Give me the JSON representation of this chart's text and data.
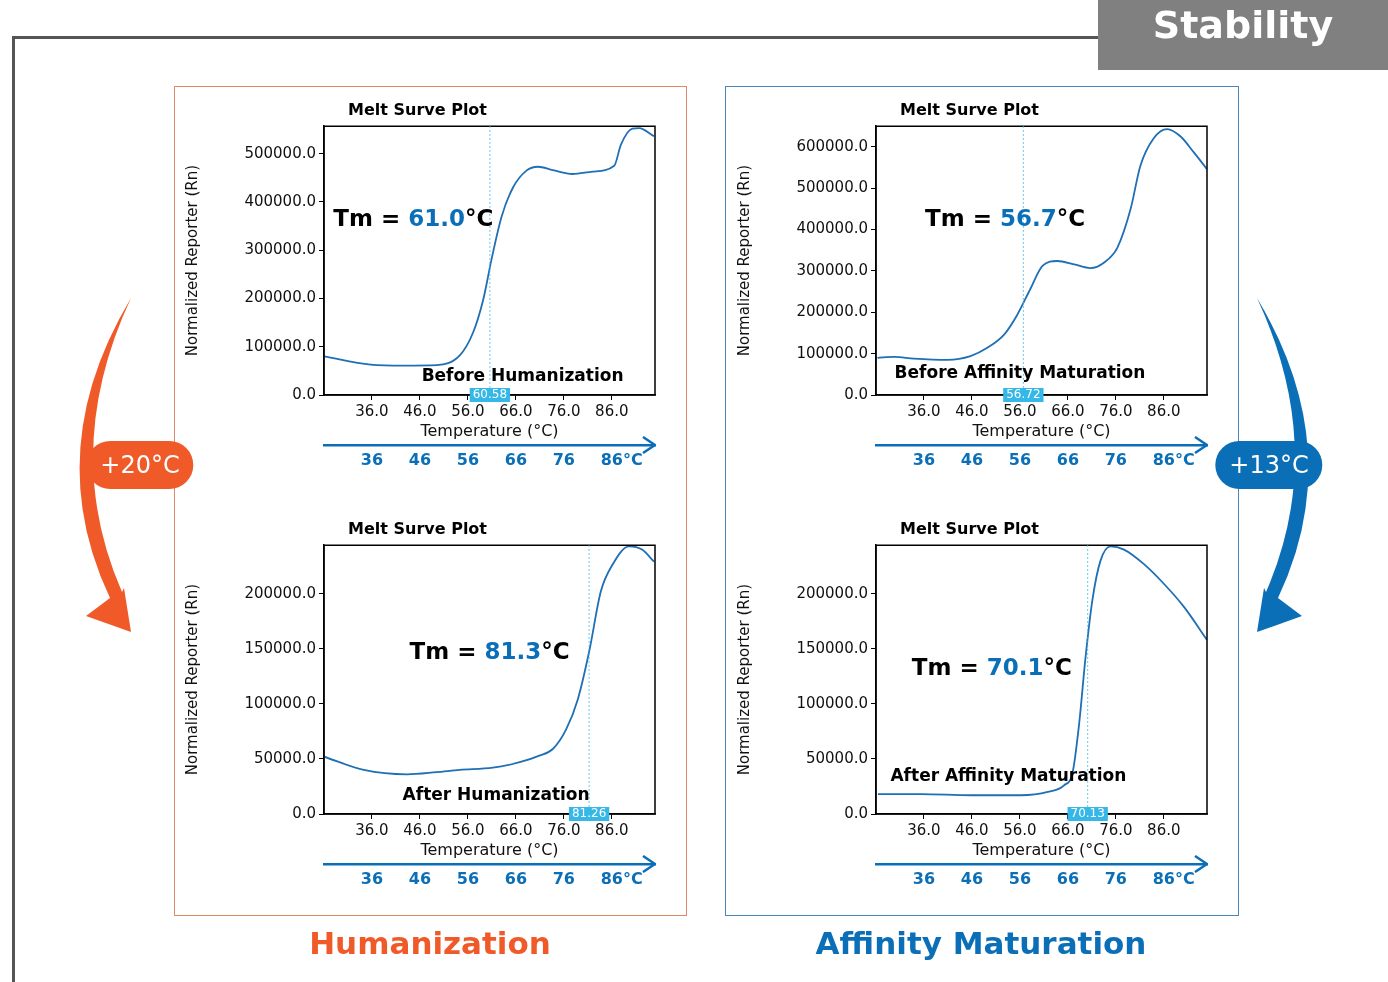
{
  "chart_data": [
    {
      "type": "line",
      "title": "Melt Surve Plot",
      "xlabel": "Temperature (°C)",
      "ylabel": "Normalized Reporter (Rn)",
      "x": [
        26.0,
        35.7,
        42.6,
        49.5,
        54.3,
        57.1,
        59.2,
        60.9,
        63.0,
        65.4,
        68.2,
        70.6,
        73.7,
        77.8,
        82.0,
        86.5,
        87.9,
        90.3,
        91.7,
        94.8
      ],
      "series": [
        {
          "color": "#1f6fb5",
          "values": [
            80000,
            63000,
            61000,
            62000,
            82000,
            130000,
            198000,
            280000,
            369000,
            430000,
            465000,
            473000,
            466000,
            458000,
            463000,
            475000,
            519000,
            552000,
            553000,
            536000
          ]
        }
      ],
      "xlim": [
        26,
        95
      ],
      "ylim": [
        0,
        557000
      ],
      "xticks": [
        {
          "value": 36,
          "label": "36.0"
        },
        {
          "value": 46,
          "label": "46.0"
        },
        {
          "value": 56,
          "label": "56.0"
        },
        {
          "value": 66,
          "label": "66.0"
        },
        {
          "value": 76,
          "label": "76.0"
        },
        {
          "value": 86,
          "label": "86.0"
        }
      ],
      "yticks": [
        {
          "value": 0,
          "label": "0.0"
        },
        {
          "value": 100000,
          "label": "100000.0"
        },
        {
          "value": 200000,
          "label": "200000.0"
        },
        {
          "value": 300000,
          "label": "300000.0"
        },
        {
          "value": 400000,
          "label": "400000.0"
        },
        {
          "value": 500000,
          "label": "500000.0"
        }
      ],
      "x2lim": [
        26,
        95
      ],
      "x2ticks": [
        36,
        46,
        56,
        66,
        76,
        86
      ],
      "x2label": "°C",
      "ref_lines": [
        {
          "axis": "x",
          "value": 60.58,
          "label": "60.58",
          "color": "#35b8e8",
          "line_style": "dotted"
        }
      ],
      "annotations": [
        "Tm = 61.0°C",
        "Before Humanization"
      ],
      "marker": "none",
      "line_style": "solid"
    },
    {
      "type": "line",
      "title": "Melt Surve Plot",
      "xlabel": "Temperature (°C)",
      "ylabel": "Normalized Reporter (Rn)",
      "x": [
        26.3,
        29.8,
        33.9,
        40.9,
        45.7,
        49.2,
        52.7,
        55.4,
        58.2,
        60.7,
        63.8,
        67.3,
        70.7,
        73.5,
        76.3,
        79.1,
        81.1,
        83.9,
        86.7,
        89.5,
        92.3,
        95.0
      ],
      "series": [
        {
          "color": "#1f6fb5",
          "values": [
            90000,
            92000,
            88000,
            85000,
            94000,
            114000,
            146000,
            193000,
            257000,
            312000,
            324000,
            316000,
            307000,
            320000,
            356000,
            451000,
            554000,
            621000,
            643000,
            625000,
            586000,
            546000
          ]
        }
      ],
      "xlim": [
        26,
        95
      ],
      "ylim": [
        0,
        650000
      ],
      "xticks": [
        {
          "value": 36,
          "label": "36.0"
        },
        {
          "value": 46,
          "label": "46.0"
        },
        {
          "value": 56,
          "label": "56.0"
        },
        {
          "value": 66,
          "label": "66.0"
        },
        {
          "value": 76,
          "label": "76.0"
        },
        {
          "value": 86,
          "label": "86.0"
        }
      ],
      "yticks": [
        {
          "value": 0,
          "label": "0.0"
        },
        {
          "value": 100000,
          "label": "100000.0"
        },
        {
          "value": 200000,
          "label": "200000.0"
        },
        {
          "value": 300000,
          "label": "300000.0"
        },
        {
          "value": 400000,
          "label": "400000.0"
        },
        {
          "value": 500000,
          "label": "500000.0"
        },
        {
          "value": 600000,
          "label": "600000.0"
        }
      ],
      "x2lim": [
        26,
        95
      ],
      "x2ticks": [
        36,
        46,
        56,
        66,
        76,
        86
      ],
      "x2label": "°C",
      "ref_lines": [
        {
          "axis": "x",
          "value": 56.72,
          "label": "56.72",
          "color": "#35b8e8",
          "line_style": "dotted"
        }
      ],
      "annotations": [
        "Tm = 56.7°C",
        "Before Affinity Maturation"
      ],
      "marker": "none",
      "line_style": "solid"
    },
    {
      "type": "line",
      "title": "Melt Surve Plot",
      "xlabel": "Temperature (°C)",
      "ylabel": "Normalized Reporter (Rn)",
      "x": [
        26.0,
        34.3,
        43.3,
        49.5,
        54.3,
        61.2,
        66.8,
        70.9,
        73.7,
        76.5,
        78.9,
        81.3,
        83.7,
        86.1,
        89.6,
        92.3,
        94.8
      ],
      "series": [
        {
          "color": "#1f6fb5",
          "values": [
            52000,
            40000,
            36000,
            38000,
            40000,
            42000,
            47000,
            53000,
            59000,
            77000,
            104000,
            148000,
            202000,
            226000,
            243000,
            240000,
            229000
          ]
        }
      ],
      "xlim": [
        26,
        95
      ],
      "ylim": [
        0,
        244000
      ],
      "xticks": [
        {
          "value": 36,
          "label": "36.0"
        },
        {
          "value": 46,
          "label": "46.0"
        },
        {
          "value": 56,
          "label": "56.0"
        },
        {
          "value": 66,
          "label": "66.0"
        },
        {
          "value": 76,
          "label": "76.0"
        },
        {
          "value": 86,
          "label": "86.0"
        }
      ],
      "yticks": [
        {
          "value": 0,
          "label": "0.0"
        },
        {
          "value": 50000,
          "label": "50000.0"
        },
        {
          "value": 100000,
          "label": "100000.0"
        },
        {
          "value": 150000,
          "label": "150000.0"
        },
        {
          "value": 200000,
          "label": "200000.0"
        }
      ],
      "x2lim": [
        26,
        95
      ],
      "x2ticks": [
        36,
        46,
        56,
        66,
        76,
        86
      ],
      "x2label": "°C",
      "ref_lines": [
        {
          "axis": "x",
          "value": 81.26,
          "label": "81.26",
          "color": "#35b8e8",
          "line_style": "dotted"
        }
      ],
      "annotations": [
        "Tm = 81.3°C",
        "After Humanization"
      ],
      "marker": "none",
      "line_style": "solid"
    },
    {
      "type": "line",
      "title": "Melt Surve Plot",
      "xlabel": "Temperature (°C)",
      "ylabel": "Normalized Reporter (Rn)",
      "x": [
        26.4,
        35.4,
        45.8,
        56.2,
        61.8,
        65.2,
        67.0,
        68.3,
        69.7,
        71.1,
        72.8,
        74.9,
        77.7,
        81.8,
        86.0,
        90.2,
        95.0
      ],
      "series": [
        {
          "color": "#1f6fb5",
          "values": [
            18000,
            18000,
            17000,
            17000,
            20000,
            26000,
            38000,
            80000,
            143000,
            194000,
            230000,
            243000,
            240000,
            227000,
            209000,
            188000,
            158000
          ]
        }
      ],
      "xlim": [
        26,
        95
      ],
      "ylim": [
        0,
        244000
      ],
      "xticks": [
        {
          "value": 36,
          "label": "36.0"
        },
        {
          "value": 46,
          "label": "46.0"
        },
        {
          "value": 56,
          "label": "56.0"
        },
        {
          "value": 66,
          "label": "66.0"
        },
        {
          "value": 76,
          "label": "76.0"
        },
        {
          "value": 86,
          "label": "86.0"
        }
      ],
      "yticks": [
        {
          "value": 0,
          "label": "0.0"
        },
        {
          "value": 50000,
          "label": "50000.0"
        },
        {
          "value": 100000,
          "label": "100000.0"
        },
        {
          "value": 150000,
          "label": "150000.0"
        },
        {
          "value": 200000,
          "label": "200000.0"
        }
      ],
      "x2lim": [
        26,
        95
      ],
      "x2ticks": [
        36,
        46,
        56,
        66,
        76,
        86
      ],
      "x2label": "°C",
      "ref_lines": [
        {
          "axis": "x",
          "value": 70.13,
          "label": "70.13",
          "color": "#35b8e8",
          "line_style": "dotted"
        }
      ],
      "annotations": [
        "Tm = 70.1°C",
        "After Affinity Maturation"
      ],
      "marker": "none",
      "line_style": "solid"
    },
    {
      "type": "other",
      "title": "Stability",
      "annotations": [
        "+20°C",
        "+13°C",
        "Humanization",
        "Affinity Maturation"
      ]
    }
  ]
}
